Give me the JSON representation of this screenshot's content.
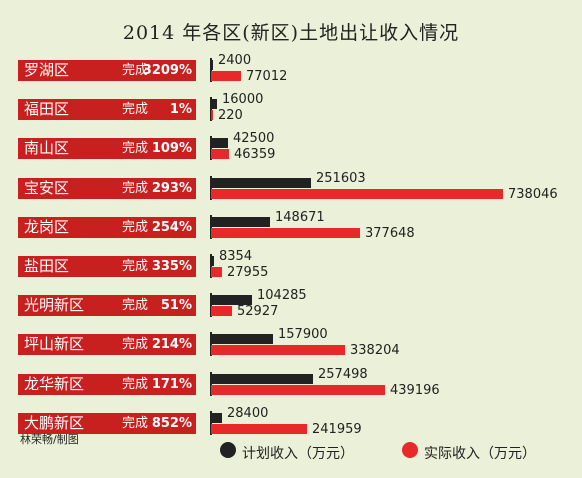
{
  "chart_data": {
    "type": "bar",
    "title": "2014 年各区(新区)土地出让收入情况",
    "categories": [
      "罗湖区",
      "福田区",
      "南山区",
      "宝安区",
      "龙岗区",
      "盐田区",
      "光明新区",
      "坪山新区",
      "龙华新区",
      "大鹏新区"
    ],
    "completion_label": "完成",
    "completion": [
      "3209%",
      "1%",
      "109%",
      "293%",
      "254%",
      "335%",
      "51%",
      "214%",
      "171%",
      "852%"
    ],
    "series": [
      {
        "name": "计划收入（万元）",
        "values": [
          2400,
          16000,
          42500,
          251603,
          148671,
          8354,
          104285,
          157900,
          257498,
          28400
        ],
        "color": "#222222"
      },
      {
        "name": "实际收入（万元）",
        "values": [
          77012,
          220,
          46359,
          738046,
          377648,
          27955,
          52927,
          338204,
          439196,
          241959
        ],
        "color": "#e8292a"
      }
    ],
    "legend_position": "bottom",
    "grid": false
  },
  "credit": "林荣畅/制图"
}
